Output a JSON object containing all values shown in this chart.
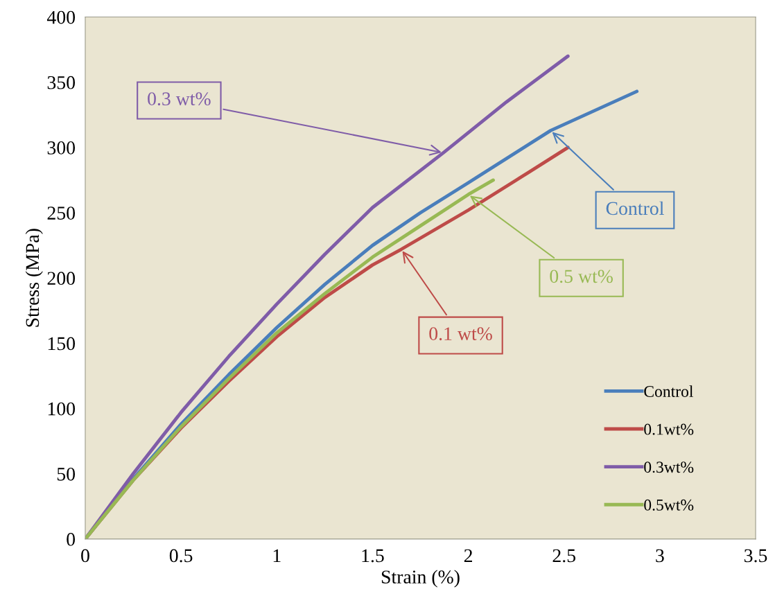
{
  "chart_data": {
    "type": "line",
    "xlabel": "Strain (%)",
    "ylabel": "Stress (MPa)",
    "xlim": [
      0,
      3.5
    ],
    "xticks": [
      0,
      0.5,
      1,
      1.5,
      2,
      2.5,
      3,
      3.5
    ],
    "ylim": [
      0,
      400
    ],
    "yticks": [
      0,
      50,
      100,
      150,
      200,
      250,
      300,
      350,
      400
    ],
    "grid": false,
    "legend": "bottom right",
    "marker": "none",
    "line_style": "solid",
    "series": [
      {
        "name": "Control",
        "color": "#4a7ebb",
        "x": [
          0,
          0.25,
          0.5,
          0.75,
          1,
          1.25,
          1.5,
          1.75,
          2,
          2.43,
          2.88
        ],
        "values": [
          0,
          46,
          88,
          126,
          162,
          195,
          225,
          250,
          273,
          313,
          343
        ]
      },
      {
        "name": "0.1wt%",
        "color": "#be4b48",
        "x": [
          0,
          0.25,
          0.5,
          0.75,
          1,
          1.25,
          1.5,
          1.65,
          2,
          2.25,
          2.52
        ],
        "values": [
          0,
          45,
          85,
          121,
          155,
          185,
          210,
          222,
          252,
          275,
          300
        ]
      },
      {
        "name": "0.3wt%",
        "color": "#7f5ca8",
        "x": [
          0,
          0.25,
          0.5,
          0.75,
          1,
          1.25,
          1.5,
          1.87,
          2.2,
          2.52
        ],
        "values": [
          0,
          50,
          97,
          140,
          180,
          218,
          254,
          296,
          335,
          370
        ]
      },
      {
        "name": "0.5wt%",
        "color": "#98b954",
        "x": [
          0,
          0.25,
          0.5,
          0.75,
          1,
          1.25,
          1.5,
          1.75,
          2,
          2.13
        ],
        "values": [
          0,
          45,
          86,
          123,
          158,
          188,
          216,
          240,
          264,
          275
        ]
      }
    ],
    "annotations": [
      {
        "text": "0.3 wt%",
        "x": 1.87,
        "y": 296
      },
      {
        "text": "Control",
        "x": 2.43,
        "y": 313
      },
      {
        "text": "0.5 wt%",
        "x": 2.0,
        "y": 264
      },
      {
        "text": "0.1 wt%",
        "x": 1.65,
        "y": 222
      }
    ]
  }
}
